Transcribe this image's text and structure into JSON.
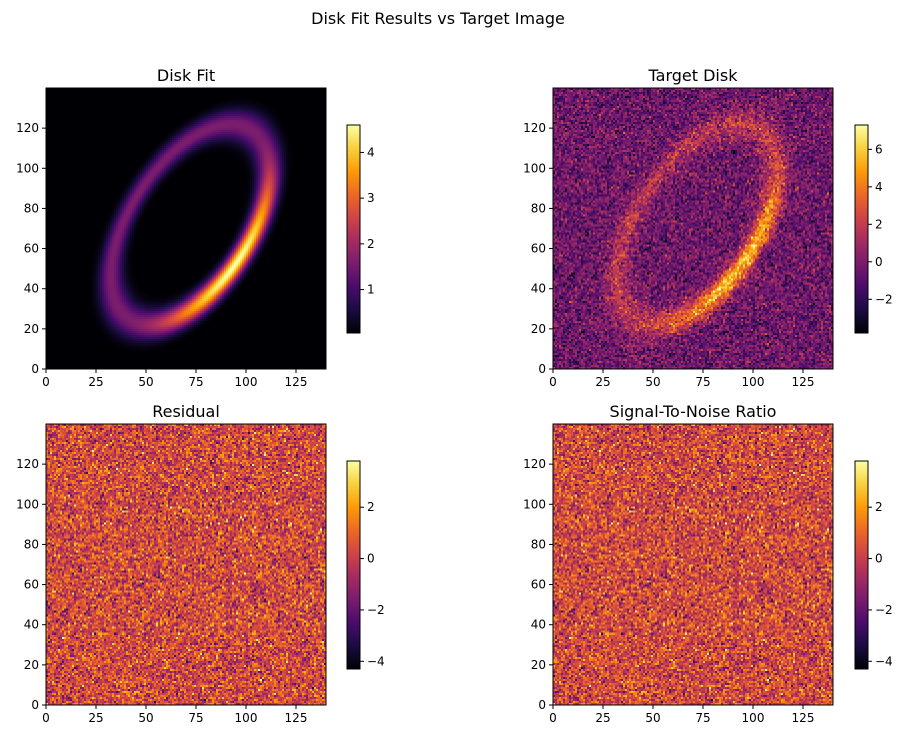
{
  "figure": {
    "suptitle": "Disk Fit Results vs Target Image"
  },
  "colormap": {
    "name": "inferno",
    "stops": [
      "#000004",
      "#1b0c41",
      "#4a0c6b",
      "#781c6d",
      "#a52c60",
      "#cf4446",
      "#ed6925",
      "#fb9b06",
      "#f7d13d",
      "#fcffa4"
    ]
  },
  "chart_data": [
    {
      "type": "heatmap",
      "title": "Disk Fit",
      "image_size": [
        140,
        140
      ],
      "xlim": [
        0,
        140
      ],
      "ylim": [
        0,
        140
      ],
      "xticks": [
        0,
        25,
        50,
        75,
        100,
        125
      ],
      "yticks": [
        0,
        20,
        40,
        60,
        80,
        100,
        120
      ],
      "content": "model",
      "colorbar": {
        "range": [
          0.05,
          4.6
        ],
        "ticks": [
          1,
          2,
          3,
          4
        ]
      }
    },
    {
      "type": "heatmap",
      "title": "Target Disk",
      "image_size": [
        140,
        140
      ],
      "xlim": [
        0,
        140
      ],
      "ylim": [
        0,
        140
      ],
      "xticks": [
        0,
        25,
        50,
        75,
        100,
        125
      ],
      "yticks": [
        0,
        20,
        40,
        60,
        80,
        100,
        120
      ],
      "content": "model_plus_noise",
      "colorbar": {
        "range": [
          -3.8,
          7.3
        ],
        "ticks": [
          -2,
          0,
          2,
          4,
          6
        ]
      }
    },
    {
      "type": "heatmap",
      "title": "Residual",
      "image_size": [
        140,
        140
      ],
      "xlim": [
        0,
        140
      ],
      "ylim": [
        0,
        140
      ],
      "xticks": [
        0,
        25,
        50,
        75,
        100,
        125
      ],
      "yticks": [
        0,
        20,
        40,
        60,
        80,
        100,
        120
      ],
      "content": "noise",
      "colorbar": {
        "range": [
          -4.3,
          3.8
        ],
        "ticks": [
          -4,
          -2,
          0,
          2
        ]
      }
    },
    {
      "type": "heatmap",
      "title": "Signal-To-Noise Ratio",
      "image_size": [
        140,
        140
      ],
      "xlim": [
        0,
        140
      ],
      "ylim": [
        0,
        140
      ],
      "xticks": [
        0,
        25,
        50,
        75,
        100,
        125
      ],
      "yticks": [
        0,
        20,
        40,
        60,
        80,
        100,
        120
      ],
      "content": "noise",
      "colorbar": {
        "range": [
          -4.3,
          3.8
        ],
        "ticks": [
          -4,
          -2,
          0,
          2
        ]
      }
    }
  ]
}
